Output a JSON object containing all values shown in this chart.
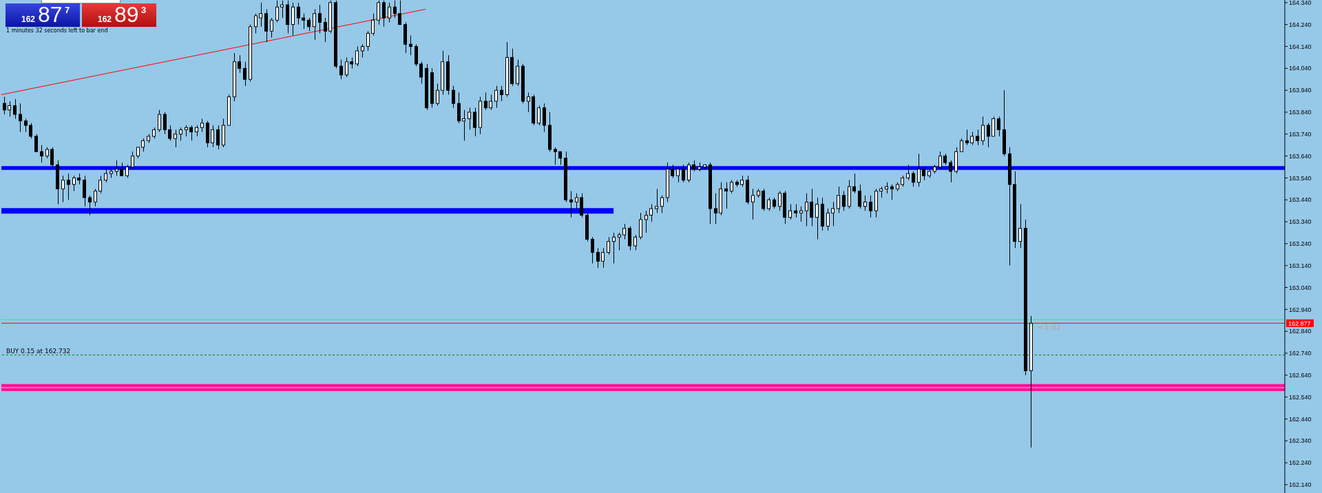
{
  "chart_data": {
    "type": "candlestick",
    "color": "#000000",
    "categories": [
      null,
      null,
      null,
      null,
      null,
      null,
      null,
      null,
      null,
      null,
      null,
      null,
      null,
      null,
      null,
      null,
      null,
      null,
      null,
      null,
      null,
      null,
      null,
      null,
      null,
      null,
      null,
      null,
      null,
      null,
      null,
      null,
      null,
      null,
      null,
      null,
      null,
      null,
      null,
      null,
      null,
      null,
      null,
      null,
      null,
      null,
      null,
      null,
      null,
      null,
      null,
      null,
      null,
      null,
      null,
      null,
      null,
      null,
      null,
      null,
      null,
      null,
      null,
      null,
      null,
      null,
      null,
      null,
      null,
      null,
      null,
      null,
      null,
      null,
      null,
      null,
      null,
      null,
      null,
      null,
      null,
      null,
      null,
      null,
      null,
      null,
      null,
      null,
      null,
      null,
      null,
      null,
      null,
      null,
      null,
      null,
      null,
      null,
      null,
      null,
      null,
      null,
      null,
      null,
      null,
      null,
      null,
      null,
      null,
      null,
      null,
      null,
      null,
      null,
      null,
      null,
      null,
      null,
      null,
      null,
      null,
      null,
      null,
      null,
      null,
      null,
      null,
      null,
      null,
      null,
      null,
      null,
      null,
      null,
      null,
      null,
      null,
      null,
      null,
      null,
      null,
      null,
      null,
      null,
      null,
      null,
      null,
      null,
      null,
      null,
      null,
      null,
      null,
      null,
      null,
      null,
      null,
      null,
      null,
      null,
      null,
      null,
      null,
      null,
      null,
      null,
      null,
      null,
      null,
      null,
      null,
      null,
      null,
      null,
      null,
      null,
      null,
      null,
      null,
      null,
      null,
      null,
      null,
      null,
      null,
      null,
      null,
      null,
      null,
      null,
      null,
      null,
      null,
      null,
      null,
      null,
      null,
      null,
      null,
      null,
      null,
      null,
      null,
      null,
      null,
      null,
      null,
      null,
      null,
      null,
      null,
      null,
      null,
      null,
      null,
      null,
      null,
      null,
      null,
      null,
      null,
      null,
      null,
      null,
      null,
      null,
      null,
      null,
      null,
      null,
      null,
      null,
      null,
      null,
      null,
      null,
      null,
      null,
      null,
      null
    ],
    "ohlc": [
      [
        163.88,
        163.91,
        163.83,
        163.85
      ],
      [
        163.85,
        163.89,
        163.82,
        163.87
      ],
      [
        163.87,
        163.9,
        163.81,
        163.83
      ],
      [
        163.83,
        163.88,
        163.75,
        163.8
      ],
      [
        163.8,
        163.81,
        163.75,
        163.78
      ],
      [
        163.78,
        163.79,
        163.72,
        163.73
      ],
      [
        163.73,
        163.74,
        163.66,
        163.66
      ],
      [
        163.66,
        163.69,
        163.61,
        163.64
      ],
      [
        163.64,
        163.68,
        163.63,
        163.67
      ],
      [
        163.67,
        163.68,
        163.59,
        163.6
      ],
      [
        163.6,
        163.62,
        163.42,
        163.49
      ],
      [
        163.49,
        163.55,
        163.43,
        163.53
      ],
      [
        163.53,
        163.56,
        163.44,
        163.51
      ],
      [
        163.51,
        163.55,
        163.48,
        163.54
      ],
      [
        163.54,
        163.56,
        163.51,
        163.53
      ],
      [
        163.53,
        163.55,
        163.41,
        163.45
      ],
      [
        163.45,
        163.46,
        163.37,
        163.43
      ],
      [
        163.43,
        163.49,
        163.41,
        163.48
      ],
      [
        163.48,
        163.55,
        163.47,
        163.53
      ],
      [
        163.53,
        163.58,
        163.52,
        163.56
      ],
      [
        163.56,
        163.58,
        163.54,
        163.57
      ],
      [
        163.57,
        163.62,
        163.55,
        163.58
      ],
      [
        163.58,
        163.61,
        163.55,
        163.55
      ],
      [
        163.55,
        163.6,
        163.54,
        163.59
      ],
      [
        163.59,
        163.66,
        163.58,
        163.64
      ],
      [
        163.64,
        163.68,
        163.63,
        163.68
      ],
      [
        163.68,
        163.72,
        163.66,
        163.71
      ],
      [
        163.71,
        163.74,
        163.7,
        163.73
      ],
      [
        163.73,
        163.77,
        163.72,
        163.76
      ],
      [
        163.76,
        163.85,
        163.75,
        163.83
      ],
      [
        163.83,
        163.84,
        163.74,
        163.76
      ],
      [
        163.76,
        163.78,
        163.71,
        163.72
      ],
      [
        163.72,
        163.76,
        163.68,
        163.74
      ],
      [
        163.74,
        163.77,
        163.71,
        163.76
      ],
      [
        163.76,
        163.78,
        163.73,
        163.77
      ],
      [
        163.77,
        163.78,
        163.71,
        163.75
      ],
      [
        163.75,
        163.78,
        163.73,
        163.77
      ],
      [
        163.77,
        163.81,
        163.75,
        163.79
      ],
      [
        163.79,
        163.8,
        163.68,
        163.7
      ],
      [
        163.7,
        163.78,
        163.68,
        163.76
      ],
      [
        163.76,
        163.78,
        163.67,
        163.69
      ],
      [
        163.69,
        163.81,
        163.68,
        163.78
      ],
      [
        163.78,
        163.92,
        163.78,
        163.91
      ],
      [
        163.91,
        164.11,
        163.89,
        164.07
      ],
      [
        164.07,
        164.1,
        164.02,
        164.04
      ],
      [
        164.04,
        164.07,
        163.96,
        163.99
      ],
      [
        163.99,
        164.24,
        163.98,
        164.23
      ],
      [
        164.23,
        164.29,
        164.2,
        164.28
      ],
      [
        164.27,
        164.34,
        164.23,
        164.29
      ],
      [
        164.29,
        164.31,
        164.16,
        164.21
      ],
      [
        164.21,
        164.27,
        164.18,
        164.26
      ],
      [
        164.26,
        164.35,
        164.25,
        164.32
      ],
      [
        164.32,
        164.35,
        164.27,
        164.33
      ],
      [
        164.33,
        164.35,
        164.2,
        164.24
      ],
      [
        164.24,
        164.34,
        164.19,
        164.32
      ],
      [
        164.32,
        164.34,
        164.24,
        164.27
      ],
      [
        164.27,
        164.29,
        164.22,
        164.26
      ],
      [
        164.26,
        164.27,
        164.21,
        164.23
      ],
      [
        164.23,
        164.31,
        164.17,
        164.29
      ],
      [
        164.29,
        164.33,
        164.2,
        164.25
      ],
      [
        164.25,
        164.27,
        164.16,
        164.21
      ],
      [
        164.21,
        164.35,
        164.2,
        164.34
      ],
      [
        164.34,
        164.35,
        164.04,
        164.05
      ],
      [
        164.05,
        164.08,
        163.99,
        164.01
      ],
      [
        164.01,
        164.09,
        164.0,
        164.07
      ],
      [
        164.07,
        164.09,
        164.04,
        164.06
      ],
      [
        164.06,
        164.14,
        164.05,
        164.12
      ],
      [
        164.12,
        164.15,
        164.09,
        164.14
      ],
      [
        164.14,
        164.21,
        164.12,
        164.2
      ],
      [
        164.2,
        164.29,
        164.19,
        164.26
      ],
      [
        164.26,
        164.35,
        164.24,
        164.34
      ],
      [
        164.34,
        164.35,
        164.23,
        164.27
      ],
      [
        164.27,
        164.34,
        164.25,
        164.32
      ],
      [
        164.32,
        164.35,
        164.27,
        164.29
      ],
      [
        164.29,
        164.35,
        164.24,
        164.24
      ],
      [
        164.24,
        164.25,
        164.11,
        164.15
      ],
      [
        164.15,
        164.19,
        164.1,
        164.14
      ],
      [
        164.14,
        164.15,
        164.05,
        164.06
      ],
      [
        164.06,
        164.07,
        163.97,
        164.0
      ],
      [
        164.04,
        164.06,
        163.85,
        163.86
      ],
      [
        164.02,
        164.04,
        163.86,
        163.88
      ],
      [
        163.88,
        163.97,
        163.87,
        163.94
      ],
      [
        163.94,
        164.12,
        163.92,
        164.07
      ],
      [
        164.07,
        164.1,
        163.92,
        163.94
      ],
      [
        163.94,
        163.96,
        163.86,
        163.88
      ],
      [
        163.88,
        163.93,
        163.79,
        163.8
      ],
      [
        163.8,
        163.85,
        163.71,
        163.81
      ],
      [
        163.81,
        163.86,
        163.76,
        163.84
      ],
      [
        163.84,
        163.86,
        163.73,
        163.77
      ],
      [
        163.77,
        163.91,
        163.74,
        163.89
      ],
      [
        163.89,
        163.93,
        163.85,
        163.86
      ],
      [
        163.86,
        163.92,
        163.85,
        163.89
      ],
      [
        163.89,
        163.96,
        163.86,
        163.94
      ],
      [
        163.94,
        163.96,
        163.89,
        163.92
      ],
      [
        163.92,
        164.16,
        163.91,
        164.09
      ],
      [
        164.09,
        164.13,
        163.96,
        163.97
      ],
      [
        163.97,
        164.08,
        163.96,
        164.05
      ],
      [
        164.05,
        164.06,
        163.88,
        163.89
      ],
      [
        163.89,
        163.93,
        163.84,
        163.91
      ],
      [
        163.91,
        163.92,
        163.78,
        163.79
      ],
      [
        163.79,
        163.87,
        163.78,
        163.86
      ],
      [
        163.86,
        163.88,
        163.75,
        163.78
      ],
      [
        163.78,
        163.84,
        163.66,
        163.67
      ],
      [
        163.67,
        163.68,
        163.6,
        163.66
      ],
      [
        163.66,
        163.66,
        163.6,
        163.63
      ],
      [
        163.63,
        163.66,
        163.43,
        163.44
      ],
      [
        163.44,
        163.48,
        163.36,
        163.43
      ],
      [
        163.43,
        163.47,
        163.4,
        163.45
      ],
      [
        163.45,
        163.47,
        163.36,
        163.37
      ],
      [
        163.37,
        163.38,
        163.25,
        163.26
      ],
      [
        163.26,
        163.27,
        163.15,
        163.2
      ],
      [
        163.2,
        163.22,
        163.13,
        163.16
      ],
      [
        163.16,
        163.22,
        163.13,
        163.2
      ],
      [
        163.2,
        163.27,
        163.19,
        163.25
      ],
      [
        163.25,
        163.29,
        163.15,
        163.27
      ],
      [
        163.27,
        163.29,
        163.21,
        163.28
      ],
      [
        163.28,
        163.33,
        163.26,
        163.31
      ],
      [
        163.31,
        163.32,
        163.21,
        163.23
      ],
      [
        163.23,
        163.28,
        163.21,
        163.27
      ],
      [
        163.27,
        163.38,
        163.26,
        163.35
      ],
      [
        163.35,
        163.39,
        163.29,
        163.37
      ],
      [
        163.37,
        163.42,
        163.34,
        163.4
      ],
      [
        163.4,
        163.49,
        163.38,
        163.41
      ],
      [
        163.41,
        163.46,
        163.38,
        163.45
      ],
      [
        163.45,
        163.61,
        163.43,
        163.58
      ],
      [
        163.58,
        163.6,
        163.54,
        163.55
      ],
      [
        163.55,
        163.59,
        163.52,
        163.58
      ],
      [
        163.58,
        163.6,
        163.52,
        163.53
      ],
      [
        163.53,
        163.61,
        163.52,
        163.6
      ],
      [
        163.6,
        163.62,
        163.57,
        163.58
      ],
      [
        163.58,
        163.61,
        163.57,
        163.59
      ],
      [
        163.59,
        163.6,
        163.58,
        163.6
      ],
      [
        163.6,
        163.61,
        163.33,
        163.4
      ],
      [
        163.4,
        163.47,
        163.33,
        163.38
      ],
      [
        163.38,
        163.52,
        163.37,
        163.49
      ],
      [
        163.49,
        163.52,
        163.4,
        163.48
      ],
      [
        163.48,
        163.53,
        163.47,
        163.52
      ],
      [
        163.52,
        163.53,
        163.5,
        163.51
      ],
      [
        163.51,
        163.55,
        163.5,
        163.53
      ],
      [
        163.53,
        163.55,
        163.42,
        163.43
      ],
      [
        163.43,
        163.49,
        163.35,
        163.46
      ],
      [
        163.46,
        163.49,
        163.45,
        163.48
      ],
      [
        163.48,
        163.49,
        163.39,
        163.4
      ],
      [
        163.4,
        163.45,
        163.39,
        163.44
      ],
      [
        163.44,
        163.45,
        163.4,
        163.41
      ],
      [
        163.41,
        163.48,
        163.39,
        163.47
      ],
      [
        163.47,
        163.48,
        163.33,
        163.36
      ],
      [
        163.36,
        163.42,
        163.35,
        163.39
      ],
      [
        163.39,
        163.42,
        163.36,
        163.38
      ],
      [
        163.38,
        163.41,
        163.34,
        163.39
      ],
      [
        163.39,
        163.47,
        163.32,
        163.43
      ],
      [
        163.43,
        163.49,
        163.32,
        163.36
      ],
      [
        163.36,
        163.45,
        163.26,
        163.42
      ],
      [
        163.42,
        163.45,
        163.3,
        163.32
      ],
      [
        163.32,
        163.4,
        163.3,
        163.38
      ],
      [
        163.38,
        163.43,
        163.32,
        163.4
      ],
      [
        163.4,
        163.5,
        163.38,
        163.46
      ],
      [
        163.46,
        163.48,
        163.39,
        163.41
      ],
      [
        163.41,
        163.53,
        163.4,
        163.5
      ],
      [
        163.5,
        163.56,
        163.47,
        163.48
      ],
      [
        163.48,
        163.51,
        163.4,
        163.41
      ],
      [
        163.41,
        163.46,
        163.39,
        163.43
      ],
      [
        163.43,
        163.46,
        163.36,
        163.39
      ],
      [
        163.39,
        163.49,
        163.36,
        163.48
      ],
      [
        163.48,
        163.5,
        163.45,
        163.49
      ],
      [
        163.49,
        163.52,
        163.47,
        163.5
      ],
      [
        163.5,
        163.51,
        163.44,
        163.49
      ],
      [
        163.49,
        163.52,
        163.48,
        163.51
      ],
      [
        163.51,
        163.55,
        163.5,
        163.54
      ],
      [
        163.54,
        163.6,
        163.53,
        163.56
      ],
      [
        163.56,
        163.57,
        163.5,
        163.52
      ],
      [
        163.52,
        163.65,
        163.5,
        163.58
      ],
      [
        163.58,
        163.59,
        163.53,
        163.55
      ],
      [
        163.55,
        163.58,
        163.54,
        163.57
      ],
      [
        163.57,
        163.6,
        163.56,
        163.59
      ],
      [
        163.59,
        163.66,
        163.58,
        163.64
      ],
      [
        163.64,
        163.65,
        163.6,
        163.61
      ],
      [
        163.61,
        163.62,
        163.52,
        163.57
      ],
      [
        163.57,
        163.68,
        163.56,
        163.66
      ],
      [
        163.66,
        163.72,
        163.66,
        163.71
      ],
      [
        163.71,
        163.76,
        163.69,
        163.7
      ],
      [
        163.7,
        163.75,
        163.69,
        163.73
      ],
      [
        163.73,
        163.76,
        163.69,
        163.71
      ],
      [
        163.71,
        163.82,
        163.69,
        163.78
      ],
      [
        163.78,
        163.79,
        163.68,
        163.73
      ],
      [
        163.73,
        163.82,
        163.73,
        163.81
      ],
      [
        163.81,
        163.82,
        163.73,
        163.76
      ],
      [
        163.76,
        163.94,
        163.64,
        163.65
      ],
      [
        163.65,
        163.68,
        163.14,
        163.51
      ],
      [
        163.51,
        163.57,
        163.22,
        163.25
      ],
      [
        163.25,
        163.42,
        163.22,
        163.31
      ],
      [
        163.31,
        163.35,
        162.64,
        162.66
      ],
      [
        162.66,
        162.91,
        162.31,
        162.877
      ],
      null,
      null,
      null,
      null,
      null,
      null,
      null,
      null,
      null,
      null,
      null,
      null,
      null,
      null,
      null,
      null,
      null,
      null,
      null,
      null,
      null,
      null,
      null,
      null,
      null,
      null,
      null,
      null,
      null,
      null,
      null,
      null,
      null,
      null,
      null,
      null,
      null,
      null,
      null,
      null,
      null,
      null,
      null,
      null,
      null,
      null,
      null
    ],
    "series": [
      {
        "type": "line",
        "color": "#ff0000",
        "values": [
          163.92,
          null,
          null,
          null,
          null,
          null,
          null,
          null,
          null,
          null,
          null,
          null,
          null,
          null,
          null,
          null,
          null,
          null,
          null,
          null,
          null,
          null,
          null,
          null,
          null,
          null,
          null,
          null,
          null,
          null,
          null,
          null,
          null,
          null,
          null,
          null,
          null,
          null,
          null,
          null,
          null,
          null,
          null,
          null,
          null,
          null,
          null,
          null,
          null,
          null,
          null,
          null,
          null,
          null,
          null,
          null,
          null,
          null,
          null,
          null,
          null,
          null,
          null,
          null,
          null,
          null,
          null,
          null,
          null,
          null,
          null,
          null,
          null,
          null,
          null,
          null,
          null,
          null,
          null,
          164.31,
          null,
          null,
          null,
          null,
          null,
          null,
          null,
          null,
          null,
          null,
          null,
          null,
          null,
          null,
          null,
          null,
          null,
          null,
          null,
          null,
          null,
          null,
          null,
          null,
          null,
          null,
          null,
          null,
          null,
          null,
          null,
          null,
          null,
          null,
          null,
          null,
          null,
          null,
          null,
          null,
          null,
          null,
          null,
          null,
          null,
          null,
          null,
          null,
          null,
          null,
          null,
          null,
          null,
          null,
          null,
          null,
          null,
          null,
          null,
          null,
          null,
          null,
          null,
          null,
          null,
          null,
          null,
          null,
          null,
          null,
          null,
          null,
          null,
          null,
          null,
          null,
          null,
          null,
          null,
          null,
          null,
          null,
          null,
          null,
          null,
          null,
          null,
          null,
          null,
          null,
          null,
          null,
          null,
          null,
          null,
          null,
          null,
          null,
          null,
          null,
          null,
          null,
          null,
          null,
          null,
          null,
          null,
          null,
          null,
          null,
          null,
          null,
          null,
          null,
          null,
          null,
          null,
          null,
          null,
          null,
          null,
          null,
          null,
          null,
          null,
          null,
          null,
          null,
          null,
          null,
          null,
          null,
          null,
          null,
          null,
          null,
          null,
          null,
          null,
          null,
          null,
          null,
          null,
          null,
          null,
          null,
          null,
          null,
          null,
          null,
          null,
          null,
          null,
          null,
          null,
          null,
          null,
          null,
          null,
          null
        ]
      },
      {
        "type": "line",
        "color": "#0000ff",
        "values": [
          163.39,
          null,
          null,
          null,
          null,
          null,
          null,
          null,
          null,
          null,
          null,
          null,
          null,
          null,
          null,
          null,
          null,
          null,
          null,
          null,
          null,
          null,
          null,
          null,
          null,
          null,
          null,
          null,
          null,
          null,
          null,
          null,
          null,
          null,
          null,
          null,
          null,
          null,
          null,
          null,
          null,
          null,
          null,
          null,
          null,
          null,
          null,
          null,
          null,
          null,
          null,
          null,
          null,
          null,
          null,
          null,
          null,
          null,
          null,
          null,
          null,
          null,
          null,
          null,
          null,
          null,
          null,
          null,
          null,
          null,
          null,
          null,
          null,
          null,
          null,
          null,
          null,
          null,
          null,
          null,
          null,
          null,
          null,
          null,
          null,
          null,
          null,
          null,
          null,
          null,
          null,
          null,
          null,
          null,
          null,
          null,
          null,
          null,
          null,
          null,
          null,
          null,
          null,
          null,
          null,
          null,
          null,
          null,
          null,
          null,
          null,
          null,
          null,
          null,
          163.39,
          null,
          null,
          null,
          null,
          null,
          null,
          null,
          null,
          null,
          null,
          null,
          null,
          null,
          null,
          null,
          null,
          null,
          null,
          null,
          null,
          null,
          null,
          null,
          null,
          null,
          null,
          null,
          null,
          null,
          null,
          null,
          null,
          null,
          null,
          null,
          null,
          null,
          null,
          null,
          null,
          null,
          null,
          null,
          null,
          null,
          null,
          null,
          null,
          null,
          null,
          null,
          null,
          null,
          null,
          null,
          null,
          null,
          null,
          null,
          null,
          null,
          null,
          null,
          null,
          null,
          null,
          null,
          null,
          null,
          null,
          null,
          null,
          null,
          null,
          null,
          null,
          null,
          null,
          null,
          null,
          null,
          null,
          null,
          null,
          null,
          null,
          null,
          null,
          null,
          null,
          null,
          null,
          null,
          null,
          null,
          null,
          null,
          null,
          null,
          null,
          null,
          null,
          null,
          null,
          null,
          null,
          null,
          null,
          null,
          null,
          null,
          null,
          null,
          null,
          null,
          null,
          null,
          null,
          null,
          null,
          null,
          null,
          null,
          null,
          null
        ]
      }
    ],
    "ylim": [
      162.102,
      164.352
    ],
    "yticks": [
      {
        "value": 162.14,
        "label": "162.140"
      },
      {
        "value": 162.24,
        "label": "162.240"
      },
      {
        "value": 162.34,
        "label": "162.340"
      },
      {
        "value": 162.44,
        "label": "162.440"
      },
      {
        "value": 162.54,
        "label": "162.540"
      },
      {
        "value": 162.64,
        "label": "162.640"
      },
      {
        "value": 162.74,
        "label": "162.740"
      },
      {
        "value": 162.84,
        "label": "162.840"
      },
      {
        "value": 162.94,
        "label": "162.940"
      },
      {
        "value": 163.04,
        "label": "163.040"
      },
      {
        "value": 163.14,
        "label": "163.140"
      },
      {
        "value": 163.24,
        "label": "163.240"
      },
      {
        "value": 163.34,
        "label": "163.340"
      },
      {
        "value": 163.44,
        "label": "163.440"
      },
      {
        "value": 163.54,
        "label": "163.540"
      },
      {
        "value": 163.64,
        "label": "163.640"
      },
      {
        "value": 163.74,
        "label": "163.740"
      },
      {
        "value": 163.84,
        "label": "163.840"
      },
      {
        "value": 163.94,
        "label": "163.940"
      },
      {
        "value": 164.04,
        "label": "164.040"
      },
      {
        "value": 164.14,
        "label": "164.140"
      },
      {
        "value": 164.24,
        "label": "164.240"
      },
      {
        "value": 164.34,
        "label": "164.340"
      }
    ],
    "tick_labels": "y",
    "ref_lines": [
      {
        "axis": "y",
        "value": 163.585,
        "color": "#0000ff"
      },
      {
        "axis": "y",
        "value": 162.893,
        "color": "#33e68c"
      },
      {
        "axis": "y",
        "value": 162.877,
        "color": "#ff0000",
        "label": "162.877"
      },
      {
        "axis": "y",
        "value": 162.732,
        "color": "#008000",
        "line_style": "dashed",
        "label": "BUY 0.15 at 162.732"
      },
      {
        "axis": "y",
        "value": 162.592,
        "color": "#ff1493"
      },
      {
        "axis": "y",
        "value": 162.574,
        "color": "#ff1493"
      }
    ],
    "annotations": [
      "162",
      "87",
      "7",
      "162",
      "89",
      "3",
      "1 minutes 32 seconds left to bar end",
      {
        "text": "<1:32",
        "y": 162.877
      }
    ]
  }
}
